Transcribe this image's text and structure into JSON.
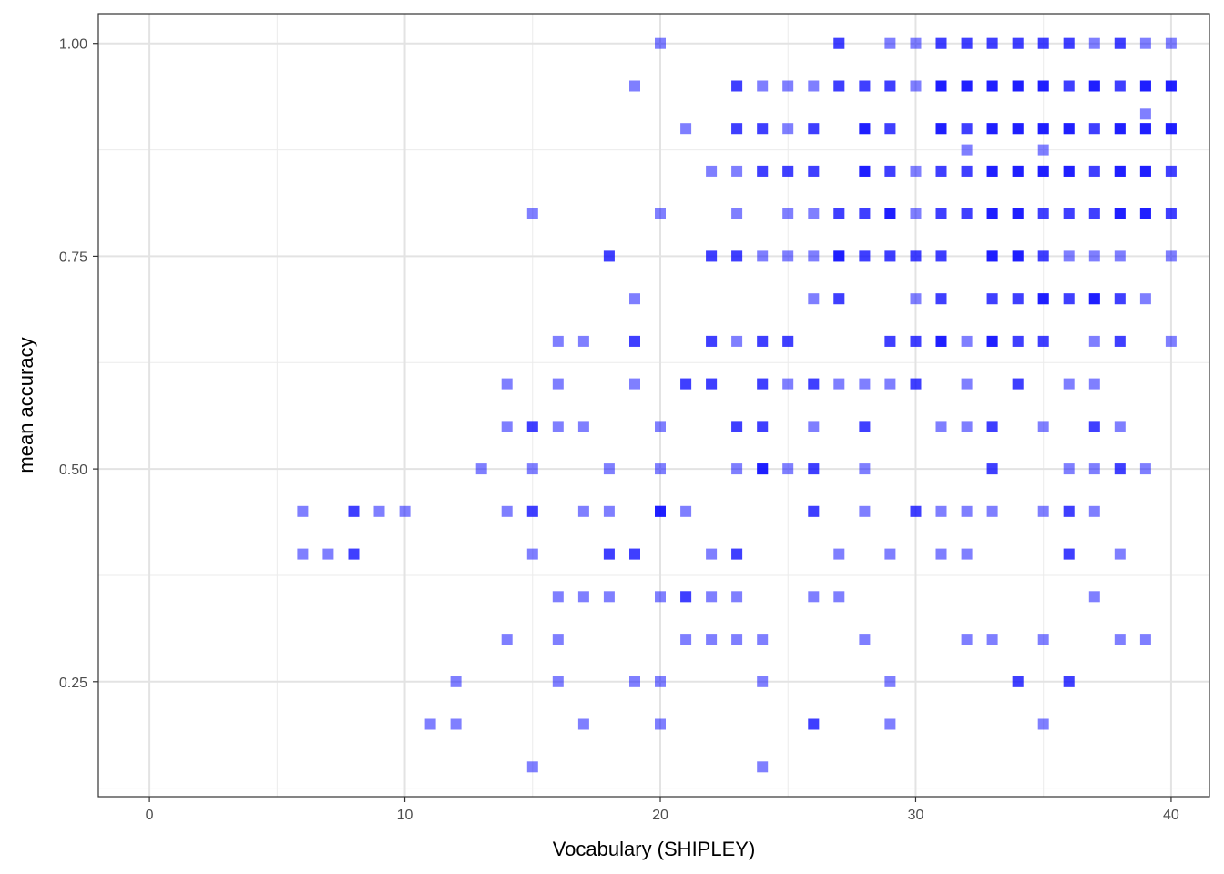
{
  "chart_data": {
    "type": "scatter",
    "title": "",
    "xlabel": "Vocabulary (SHIPLEY)",
    "ylabel": "mean accuracy",
    "xlim": [
      -2,
      41.5
    ],
    "ylim": [
      0.115,
      1.035
    ],
    "x_ticks": [
      0,
      10,
      20,
      30,
      40
    ],
    "x_tick_labels": [
      "0",
      "10",
      "20",
      "30",
      "40"
    ],
    "y_ticks": [
      0.25,
      0.5,
      0.75,
      1.0
    ],
    "y_tick_labels": [
      "0.25",
      "0.50",
      "0.75",
      "1.00"
    ],
    "grid": true,
    "theme": "bw",
    "marker": "square",
    "point_color": "#0000ff",
    "point_alpha": 0.5,
    "points": [
      [
        20,
        1.0
      ],
      [
        27,
        1.0
      ],
      [
        27,
        1.0
      ],
      [
        29,
        1.0
      ],
      [
        30,
        1.0
      ],
      [
        31,
        1.0
      ],
      [
        31,
        1.0
      ],
      [
        32,
        1.0
      ],
      [
        32,
        1.0
      ],
      [
        33,
        1.0
      ],
      [
        33,
        1.0
      ],
      [
        34,
        1.0
      ],
      [
        34,
        1.0
      ],
      [
        35,
        1.0
      ],
      [
        35,
        1.0
      ],
      [
        36,
        1.0
      ],
      [
        36,
        1.0
      ],
      [
        37,
        1.0
      ],
      [
        38,
        1.0
      ],
      [
        38,
        1.0
      ],
      [
        39,
        1.0
      ],
      [
        40,
        1.0
      ],
      [
        19,
        0.95
      ],
      [
        23,
        0.95
      ],
      [
        23,
        0.95
      ],
      [
        24,
        0.95
      ],
      [
        25,
        0.95
      ],
      [
        26,
        0.95
      ],
      [
        27,
        0.95
      ],
      [
        27,
        0.95
      ],
      [
        28,
        0.95
      ],
      [
        28,
        0.95
      ],
      [
        29,
        0.95
      ],
      [
        29,
        0.95
      ],
      [
        30,
        0.95
      ],
      [
        31,
        0.95
      ],
      [
        31,
        0.95
      ],
      [
        31,
        0.95
      ],
      [
        32,
        0.95
      ],
      [
        32,
        0.95
      ],
      [
        32,
        0.95
      ],
      [
        33,
        0.95
      ],
      [
        33,
        0.95
      ],
      [
        33,
        0.95
      ],
      [
        34,
        0.95
      ],
      [
        34,
        0.95
      ],
      [
        34,
        0.95
      ],
      [
        35,
        0.95
      ],
      [
        35,
        0.95
      ],
      [
        35,
        0.95
      ],
      [
        36,
        0.95
      ],
      [
        36,
        0.95
      ],
      [
        37,
        0.95
      ],
      [
        37,
        0.95
      ],
      [
        37,
        0.95
      ],
      [
        38,
        0.95
      ],
      [
        38,
        0.95
      ],
      [
        39,
        0.95
      ],
      [
        39,
        0.95
      ],
      [
        39,
        0.95
      ],
      [
        40,
        0.95
      ],
      [
        40,
        0.95
      ],
      [
        40,
        0.95
      ],
      [
        39,
        0.917
      ],
      [
        21,
        0.9
      ],
      [
        23,
        0.9
      ],
      [
        23,
        0.9
      ],
      [
        24,
        0.9
      ],
      [
        24,
        0.9
      ],
      [
        25,
        0.9
      ],
      [
        26,
        0.9
      ],
      [
        26,
        0.9
      ],
      [
        28,
        0.9
      ],
      [
        28,
        0.9
      ],
      [
        28,
        0.9
      ],
      [
        29,
        0.9
      ],
      [
        29,
        0.9
      ],
      [
        31,
        0.9
      ],
      [
        31,
        0.9
      ],
      [
        31,
        0.9
      ],
      [
        32,
        0.9
      ],
      [
        32,
        0.9
      ],
      [
        33,
        0.9
      ],
      [
        33,
        0.9
      ],
      [
        33,
        0.9
      ],
      [
        34,
        0.9
      ],
      [
        34,
        0.9
      ],
      [
        34,
        0.9
      ],
      [
        35,
        0.9
      ],
      [
        35,
        0.9
      ],
      [
        35,
        0.9
      ],
      [
        36,
        0.9
      ],
      [
        36,
        0.9
      ],
      [
        36,
        0.9
      ],
      [
        37,
        0.9
      ],
      [
        37,
        0.9
      ],
      [
        38,
        0.9
      ],
      [
        38,
        0.9
      ],
      [
        38,
        0.9
      ],
      [
        39,
        0.9
      ],
      [
        39,
        0.9
      ],
      [
        39,
        0.9
      ],
      [
        40,
        0.9
      ],
      [
        40,
        0.9
      ],
      [
        40,
        0.9
      ],
      [
        32,
        0.875
      ],
      [
        35,
        0.875
      ],
      [
        22,
        0.85
      ],
      [
        23,
        0.85
      ],
      [
        24,
        0.85
      ],
      [
        24,
        0.85
      ],
      [
        25,
        0.85
      ],
      [
        25,
        0.85
      ],
      [
        26,
        0.85
      ],
      [
        26,
        0.85
      ],
      [
        28,
        0.85
      ],
      [
        28,
        0.85
      ],
      [
        28,
        0.85
      ],
      [
        29,
        0.85
      ],
      [
        29,
        0.85
      ],
      [
        30,
        0.85
      ],
      [
        31,
        0.85
      ],
      [
        31,
        0.85
      ],
      [
        32,
        0.85
      ],
      [
        32,
        0.85
      ],
      [
        33,
        0.85
      ],
      [
        33,
        0.85
      ],
      [
        33,
        0.85
      ],
      [
        34,
        0.85
      ],
      [
        34,
        0.85
      ],
      [
        34,
        0.85
      ],
      [
        35,
        0.85
      ],
      [
        35,
        0.85
      ],
      [
        35,
        0.85
      ],
      [
        36,
        0.85
      ],
      [
        36,
        0.85
      ],
      [
        36,
        0.85
      ],
      [
        37,
        0.85
      ],
      [
        37,
        0.85
      ],
      [
        38,
        0.85
      ],
      [
        38,
        0.85
      ],
      [
        38,
        0.85
      ],
      [
        39,
        0.85
      ],
      [
        39,
        0.85
      ],
      [
        39,
        0.85
      ],
      [
        40,
        0.85
      ],
      [
        40,
        0.85
      ],
      [
        15,
        0.8
      ],
      [
        20,
        0.8
      ],
      [
        23,
        0.8
      ],
      [
        25,
        0.8
      ],
      [
        26,
        0.8
      ],
      [
        27,
        0.8
      ],
      [
        27,
        0.8
      ],
      [
        28,
        0.8
      ],
      [
        28,
        0.8
      ],
      [
        29,
        0.8
      ],
      [
        29,
        0.8
      ],
      [
        29,
        0.8
      ],
      [
        30,
        0.8
      ],
      [
        31,
        0.8
      ],
      [
        31,
        0.8
      ],
      [
        32,
        0.8
      ],
      [
        32,
        0.8
      ],
      [
        33,
        0.8
      ],
      [
        33,
        0.8
      ],
      [
        33,
        0.8
      ],
      [
        34,
        0.8
      ],
      [
        34,
        0.8
      ],
      [
        34,
        0.8
      ],
      [
        35,
        0.8
      ],
      [
        35,
        0.8
      ],
      [
        36,
        0.8
      ],
      [
        36,
        0.8
      ],
      [
        37,
        0.8
      ],
      [
        37,
        0.8
      ],
      [
        38,
        0.8
      ],
      [
        38,
        0.8
      ],
      [
        38,
        0.8
      ],
      [
        39,
        0.8
      ],
      [
        39,
        0.8
      ],
      [
        39,
        0.8
      ],
      [
        40,
        0.8
      ],
      [
        40,
        0.8
      ],
      [
        18,
        0.75
      ],
      [
        18,
        0.75
      ],
      [
        22,
        0.75
      ],
      [
        22,
        0.75
      ],
      [
        23,
        0.75
      ],
      [
        23,
        0.75
      ],
      [
        24,
        0.75
      ],
      [
        25,
        0.75
      ],
      [
        26,
        0.75
      ],
      [
        27,
        0.75
      ],
      [
        27,
        0.75
      ],
      [
        27,
        0.75
      ],
      [
        28,
        0.75
      ],
      [
        28,
        0.75
      ],
      [
        29,
        0.75
      ],
      [
        29,
        0.75
      ],
      [
        30,
        0.75
      ],
      [
        30,
        0.75
      ],
      [
        31,
        0.75
      ],
      [
        31,
        0.75
      ],
      [
        33,
        0.75
      ],
      [
        33,
        0.75
      ],
      [
        33,
        0.75
      ],
      [
        34,
        0.75
      ],
      [
        34,
        0.75
      ],
      [
        34,
        0.75
      ],
      [
        35,
        0.75
      ],
      [
        35,
        0.75
      ],
      [
        36,
        0.75
      ],
      [
        37,
        0.75
      ],
      [
        38,
        0.75
      ],
      [
        40,
        0.75
      ],
      [
        19,
        0.7
      ],
      [
        26,
        0.7
      ],
      [
        27,
        0.7
      ],
      [
        27,
        0.7
      ],
      [
        30,
        0.7
      ],
      [
        31,
        0.7
      ],
      [
        31,
        0.7
      ],
      [
        33,
        0.7
      ],
      [
        33,
        0.7
      ],
      [
        34,
        0.7
      ],
      [
        34,
        0.7
      ],
      [
        35,
        0.7
      ],
      [
        35,
        0.7
      ],
      [
        35,
        0.7
      ],
      [
        36,
        0.7
      ],
      [
        36,
        0.7
      ],
      [
        37,
        0.7
      ],
      [
        37,
        0.7
      ],
      [
        37,
        0.7
      ],
      [
        38,
        0.7
      ],
      [
        38,
        0.7
      ],
      [
        39,
        0.7
      ],
      [
        16,
        0.65
      ],
      [
        17,
        0.65
      ],
      [
        19,
        0.65
      ],
      [
        19,
        0.65
      ],
      [
        22,
        0.65
      ],
      [
        22,
        0.65
      ],
      [
        23,
        0.65
      ],
      [
        24,
        0.65
      ],
      [
        24,
        0.65
      ],
      [
        25,
        0.65
      ],
      [
        25,
        0.65
      ],
      [
        29,
        0.65
      ],
      [
        29,
        0.65
      ],
      [
        30,
        0.65
      ],
      [
        30,
        0.65
      ],
      [
        31,
        0.65
      ],
      [
        31,
        0.65
      ],
      [
        31,
        0.65
      ],
      [
        32,
        0.65
      ],
      [
        33,
        0.65
      ],
      [
        33,
        0.65
      ],
      [
        33,
        0.65
      ],
      [
        34,
        0.65
      ],
      [
        34,
        0.65
      ],
      [
        35,
        0.65
      ],
      [
        35,
        0.65
      ],
      [
        37,
        0.65
      ],
      [
        38,
        0.65
      ],
      [
        38,
        0.65
      ],
      [
        40,
        0.65
      ],
      [
        14,
        0.6
      ],
      [
        16,
        0.6
      ],
      [
        19,
        0.6
      ],
      [
        21,
        0.6
      ],
      [
        21,
        0.6
      ],
      [
        22,
        0.6
      ],
      [
        22,
        0.6
      ],
      [
        24,
        0.6
      ],
      [
        24,
        0.6
      ],
      [
        25,
        0.6
      ],
      [
        26,
        0.6
      ],
      [
        26,
        0.6
      ],
      [
        27,
        0.6
      ],
      [
        28,
        0.6
      ],
      [
        29,
        0.6
      ],
      [
        30,
        0.6
      ],
      [
        30,
        0.6
      ],
      [
        32,
        0.6
      ],
      [
        34,
        0.6
      ],
      [
        34,
        0.6
      ],
      [
        36,
        0.6
      ],
      [
        37,
        0.6
      ],
      [
        14,
        0.55
      ],
      [
        15,
        0.55
      ],
      [
        15,
        0.55
      ],
      [
        16,
        0.55
      ],
      [
        17,
        0.55
      ],
      [
        20,
        0.55
      ],
      [
        23,
        0.55
      ],
      [
        23,
        0.55
      ],
      [
        24,
        0.55
      ],
      [
        24,
        0.55
      ],
      [
        26,
        0.55
      ],
      [
        28,
        0.55
      ],
      [
        28,
        0.55
      ],
      [
        31,
        0.55
      ],
      [
        32,
        0.55
      ],
      [
        33,
        0.55
      ],
      [
        33,
        0.55
      ],
      [
        35,
        0.55
      ],
      [
        37,
        0.55
      ],
      [
        37,
        0.55
      ],
      [
        38,
        0.55
      ],
      [
        13,
        0.5
      ],
      [
        15,
        0.5
      ],
      [
        18,
        0.5
      ],
      [
        20,
        0.5
      ],
      [
        23,
        0.5
      ],
      [
        24,
        0.5
      ],
      [
        24,
        0.5
      ],
      [
        24,
        0.5
      ],
      [
        25,
        0.5
      ],
      [
        26,
        0.5
      ],
      [
        26,
        0.5
      ],
      [
        28,
        0.5
      ],
      [
        33,
        0.5
      ],
      [
        33,
        0.5
      ],
      [
        36,
        0.5
      ],
      [
        37,
        0.5
      ],
      [
        38,
        0.5
      ],
      [
        38,
        0.5
      ],
      [
        39,
        0.5
      ],
      [
        6,
        0.45
      ],
      [
        8,
        0.45
      ],
      [
        8,
        0.45
      ],
      [
        9,
        0.45
      ],
      [
        10,
        0.45
      ],
      [
        14,
        0.45
      ],
      [
        15,
        0.45
      ],
      [
        15,
        0.45
      ],
      [
        17,
        0.45
      ],
      [
        18,
        0.45
      ],
      [
        20,
        0.45
      ],
      [
        20,
        0.45
      ],
      [
        20,
        0.45
      ],
      [
        21,
        0.45
      ],
      [
        26,
        0.45
      ],
      [
        26,
        0.45
      ],
      [
        28,
        0.45
      ],
      [
        30,
        0.45
      ],
      [
        30,
        0.45
      ],
      [
        31,
        0.45
      ],
      [
        32,
        0.45
      ],
      [
        33,
        0.45
      ],
      [
        35,
        0.45
      ],
      [
        36,
        0.45
      ],
      [
        36,
        0.45
      ],
      [
        37,
        0.45
      ],
      [
        6,
        0.4
      ],
      [
        7,
        0.4
      ],
      [
        8,
        0.4
      ],
      [
        8,
        0.4
      ],
      [
        15,
        0.4
      ],
      [
        18,
        0.4
      ],
      [
        18,
        0.4
      ],
      [
        19,
        0.4
      ],
      [
        19,
        0.4
      ],
      [
        22,
        0.4
      ],
      [
        23,
        0.4
      ],
      [
        23,
        0.4
      ],
      [
        27,
        0.4
      ],
      [
        29,
        0.4
      ],
      [
        31,
        0.4
      ],
      [
        32,
        0.4
      ],
      [
        36,
        0.4
      ],
      [
        36,
        0.4
      ],
      [
        38,
        0.4
      ],
      [
        16,
        0.35
      ],
      [
        17,
        0.35
      ],
      [
        18,
        0.35
      ],
      [
        20,
        0.35
      ],
      [
        21,
        0.35
      ],
      [
        21,
        0.35
      ],
      [
        22,
        0.35
      ],
      [
        23,
        0.35
      ],
      [
        26,
        0.35
      ],
      [
        27,
        0.35
      ],
      [
        37,
        0.35
      ],
      [
        14,
        0.3
      ],
      [
        16,
        0.3
      ],
      [
        21,
        0.3
      ],
      [
        22,
        0.3
      ],
      [
        23,
        0.3
      ],
      [
        24,
        0.3
      ],
      [
        28,
        0.3
      ],
      [
        32,
        0.3
      ],
      [
        33,
        0.3
      ],
      [
        35,
        0.3
      ],
      [
        38,
        0.3
      ],
      [
        39,
        0.3
      ],
      [
        12,
        0.25
      ],
      [
        16,
        0.25
      ],
      [
        19,
        0.25
      ],
      [
        20,
        0.25
      ],
      [
        24,
        0.25
      ],
      [
        29,
        0.25
      ],
      [
        34,
        0.25
      ],
      [
        34,
        0.25
      ],
      [
        36,
        0.25
      ],
      [
        36,
        0.25
      ],
      [
        11,
        0.2
      ],
      [
        12,
        0.2
      ],
      [
        17,
        0.2
      ],
      [
        20,
        0.2
      ],
      [
        26,
        0.2
      ],
      [
        26,
        0.2
      ],
      [
        29,
        0.2
      ],
      [
        35,
        0.2
      ],
      [
        15,
        0.15
      ],
      [
        24,
        0.15
      ]
    ]
  }
}
